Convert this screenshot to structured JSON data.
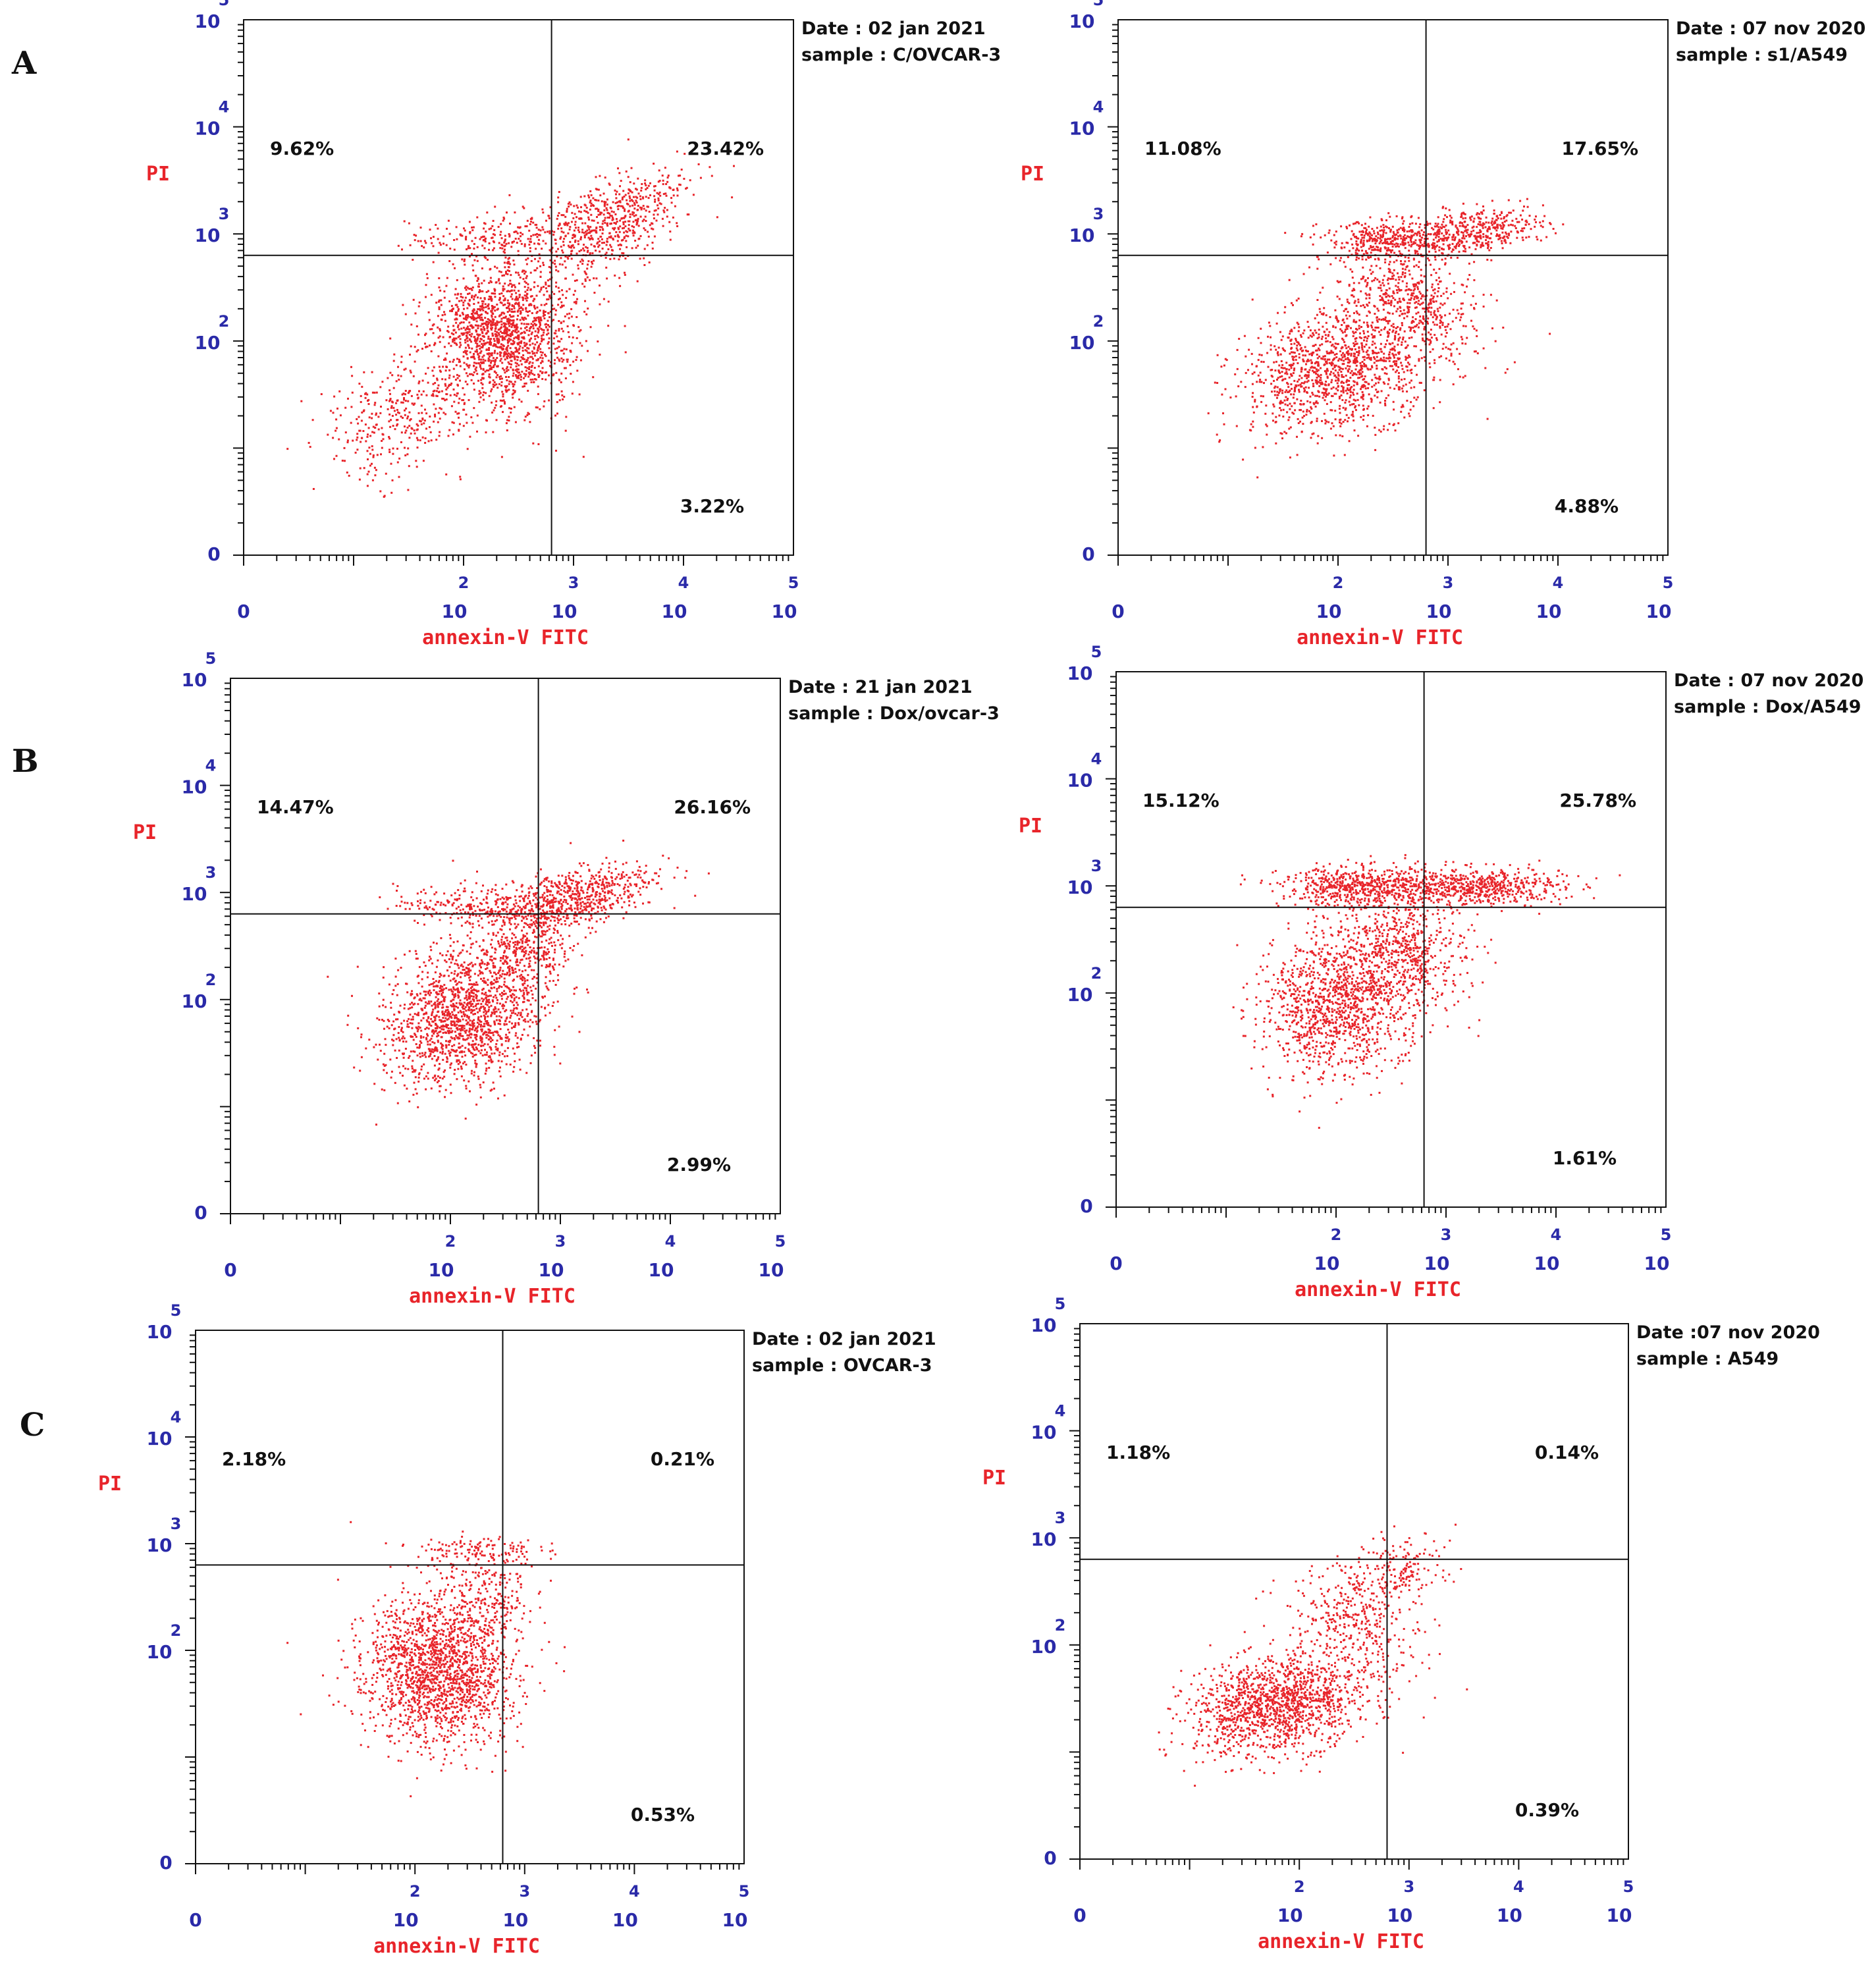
{
  "figure": {
    "row_labels": [
      "A",
      "B",
      "C"
    ],
    "dot_color": "#e8242a",
    "axis_color": "#2a2aa8",
    "tick_base": "10",
    "tick_exponents": [
      "0",
      "2",
      "3",
      "4",
      "5"
    ]
  },
  "chart_data": [
    {
      "type": "scatter",
      "row": "A",
      "date": "Date : 02 jan 2021",
      "sample": "sample : C/OVCAR-3",
      "xlabel": "annexin-V FITC",
      "ylabel": "PI",
      "xlim": [
        0,
        5
      ],
      "ylim": [
        0,
        5
      ],
      "quadrant_gate": {
        "x": 2.8,
        "y": 2.8
      },
      "quadrants": {
        "upper_left": "9.62%",
        "upper_right": "23.42%",
        "lower_right": "3.22%"
      },
      "clusters": [
        {
          "x": 2.35,
          "y": 2.05,
          "sx": 0.33,
          "sy": 0.33,
          "n": 1600,
          "rot": 0.72
        },
        {
          "x": 3.3,
          "y": 3.1,
          "sx": 0.38,
          "sy": 0.2,
          "n": 650,
          "rot": 0.6
        },
        {
          "x": 2.3,
          "y": 3.0,
          "sx": 0.4,
          "sy": 0.1,
          "n": 200,
          "rot": 0.1
        },
        {
          "x": 1.4,
          "y": 1.3,
          "sx": 0.35,
          "sy": 0.25,
          "n": 350,
          "rot": 0.5
        }
      ]
    },
    {
      "type": "scatter",
      "row": "A",
      "date": "Date : 07 nov 2020",
      "sample": "sample : s1/A549",
      "xlabel": "annexin-V FITC",
      "ylabel": "PI",
      "xlim": [
        0,
        5
      ],
      "ylim": [
        0,
        5
      ],
      "quadrant_gate": {
        "x": 2.8,
        "y": 2.8
      },
      "quadrants": {
        "upper_left": "11.08%",
        "upper_right": "17.65%",
        "lower_right": "4.88%"
      },
      "clusters": [
        {
          "x": 2.0,
          "y": 1.75,
          "sx": 0.45,
          "sy": 0.28,
          "n": 1300,
          "rot": 0.3
        },
        {
          "x": 2.65,
          "y": 2.4,
          "sx": 0.22,
          "sy": 0.33,
          "n": 500,
          "rot": 1.0
        },
        {
          "x": 2.55,
          "y": 2.95,
          "sx": 0.35,
          "sy": 0.09,
          "n": 450,
          "rot": 0.0
        },
        {
          "x": 3.3,
          "y": 3.05,
          "sx": 0.3,
          "sy": 0.1,
          "n": 350,
          "rot": 0.1
        }
      ]
    },
    {
      "type": "scatter",
      "row": "B",
      "date": "Date : 21 jan 2021",
      "sample": "sample : Dox/ovcar-3",
      "xlabel": "annexin-V FITC",
      "ylabel": "PI",
      "xlim": [
        0,
        5
      ],
      "ylim": [
        0,
        5
      ],
      "quadrant_gate": {
        "x": 2.8,
        "y": 2.8
      },
      "quadrants": {
        "upper_left": "14.47%",
        "upper_right": "26.16%",
        "lower_right": "2.99%"
      },
      "clusters": [
        {
          "x": 2.1,
          "y": 1.85,
          "sx": 0.36,
          "sy": 0.3,
          "n": 1500,
          "rot": 0.55
        },
        {
          "x": 3.1,
          "y": 2.95,
          "sx": 0.38,
          "sy": 0.14,
          "n": 650,
          "rot": 0.3
        },
        {
          "x": 2.3,
          "y": 2.9,
          "sx": 0.4,
          "sy": 0.09,
          "n": 250,
          "rot": 0.0
        },
        {
          "x": 2.7,
          "y": 2.45,
          "sx": 0.2,
          "sy": 0.2,
          "n": 300,
          "rot": 0.8
        }
      ]
    },
    {
      "type": "scatter",
      "row": "B",
      "date": "Date : 07 nov 2020",
      "sample": "sample : Dox/A549",
      "xlabel": "annexin-V FITC",
      "ylabel": "PI",
      "xlim": [
        0,
        5
      ],
      "ylim": [
        0,
        5
      ],
      "quadrant_gate": {
        "x": 2.8,
        "y": 2.8
      },
      "quadrants": {
        "upper_left": "15.12%",
        "upper_right": "25.78%",
        "lower_right": "1.61%"
      },
      "clusters": [
        {
          "x": 2.0,
          "y": 1.9,
          "sx": 0.35,
          "sy": 0.32,
          "n": 1200,
          "rot": 0.6
        },
        {
          "x": 2.6,
          "y": 2.4,
          "sx": 0.28,
          "sy": 0.28,
          "n": 600,
          "rot": 0.8
        },
        {
          "x": 2.2,
          "y": 3.0,
          "sx": 0.35,
          "sy": 0.09,
          "n": 550,
          "rot": 0.0
        },
        {
          "x": 3.25,
          "y": 3.0,
          "sx": 0.4,
          "sy": 0.09,
          "n": 600,
          "rot": 0.0
        }
      ]
    },
    {
      "type": "scatter",
      "row": "C",
      "date": "Date : 02 jan 2021",
      "sample": "sample : OVCAR-3",
      "xlabel": "annexin-V FITC",
      "ylabel": "PI",
      "xlim": [
        0,
        5
      ],
      "ylim": [
        0,
        5
      ],
      "quadrant_gate": {
        "x": 2.8,
        "y": 2.8
      },
      "quadrants": {
        "upper_left": "2.18%",
        "upper_right": "0.21%",
        "lower_right": "0.53%"
      },
      "clusters": [
        {
          "x": 2.2,
          "y": 1.8,
          "sx": 0.32,
          "sy": 0.35,
          "n": 1700,
          "rot": 0.9
        },
        {
          "x": 2.6,
          "y": 2.55,
          "sx": 0.2,
          "sy": 0.25,
          "n": 250,
          "rot": 0.9
        },
        {
          "x": 2.55,
          "y": 2.95,
          "sx": 0.28,
          "sy": 0.07,
          "n": 120,
          "rot": 0.0
        }
      ]
    },
    {
      "type": "scatter",
      "row": "C",
      "date": "Date :07 nov 2020",
      "sample": "sample : A549",
      "xlabel": "annexin-V FITC",
      "ylabel": "PI",
      "xlim": [
        0,
        5
      ],
      "ylim": [
        0,
        5
      ],
      "quadrant_gate": {
        "x": 2.8,
        "y": 2.8
      },
      "quadrants": {
        "upper_left": "1.18%",
        "upper_right": "0.14%",
        "lower_right": "0.39%"
      },
      "clusters": [
        {
          "x": 1.8,
          "y": 1.45,
          "sx": 0.4,
          "sy": 0.22,
          "n": 1400,
          "rot": 0.2
        },
        {
          "x": 2.5,
          "y": 2.2,
          "sx": 0.25,
          "sy": 0.3,
          "n": 350,
          "rot": 0.9
        },
        {
          "x": 2.9,
          "y": 2.7,
          "sx": 0.25,
          "sy": 0.15,
          "n": 180,
          "rot": 0.3
        }
      ]
    }
  ]
}
